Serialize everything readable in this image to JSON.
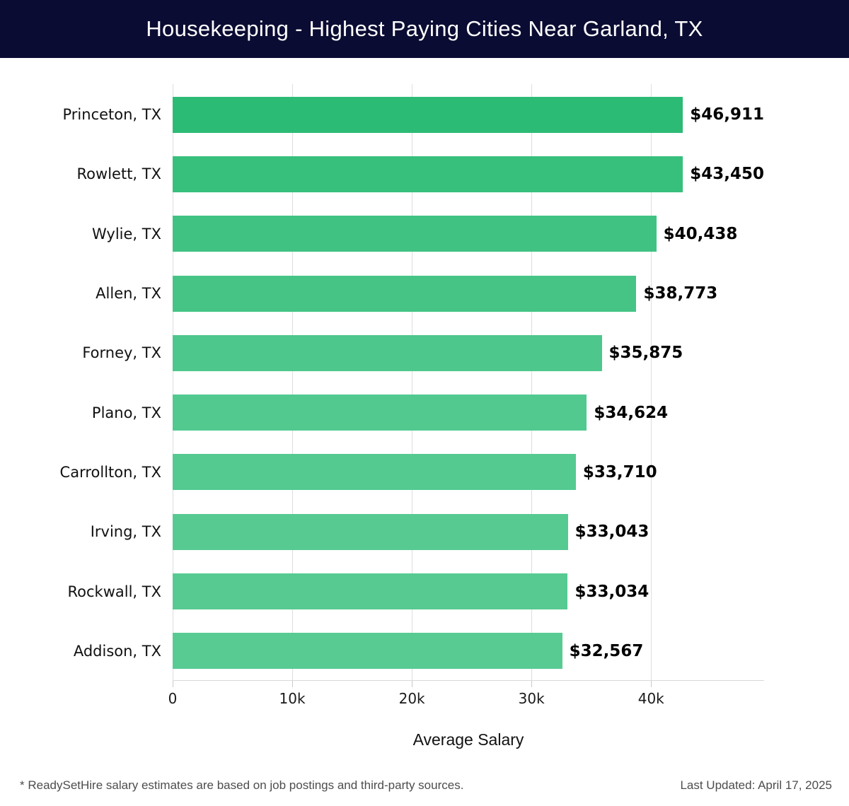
{
  "header": {
    "title": "Housekeeping - Highest Paying Cities Near Garland, TX",
    "bg_color": "#0b0c33",
    "text_color": "#ffffff"
  },
  "chart_data": {
    "type": "bar",
    "orientation": "horizontal",
    "title": "Housekeeping - Highest Paying Cities Near Garland, TX",
    "categories": [
      "Princeton, TX",
      "Rowlett, TX",
      "Wylie, TX",
      "Allen, TX",
      "Forney, TX",
      "Plano, TX",
      "Carrollton, TX",
      "Irving, TX",
      "Rockwall, TX",
      "Addison, TX"
    ],
    "values": [
      46911,
      43450,
      40438,
      38773,
      35875,
      34624,
      33710,
      33043,
      33034,
      32567
    ],
    "value_labels": [
      "$46,911",
      "$43,450",
      "$40,438",
      "$38,773",
      "$35,875",
      "$34,624",
      "$33,710",
      "$33,043",
      "$33,034",
      "$32,567"
    ],
    "xlabel": "Average Salary",
    "ylabel": "",
    "xlim": [
      0,
      49450
    ],
    "x_ticks": [
      {
        "value": 0,
        "label": "0"
      },
      {
        "value": 10000,
        "label": "10k"
      },
      {
        "value": 20000,
        "label": "20k"
      },
      {
        "value": 30000,
        "label": "30k"
      },
      {
        "value": 40000,
        "label": "40k"
      }
    ],
    "grid": "vertical",
    "legend": "none",
    "bar_color_high": "#2cbb75",
    "bar_color_low": "#58cb93",
    "gridline_color": "#dedede"
  },
  "footer": {
    "note": "* ReadySetHire salary estimates are based on job postings and third-party sources.",
    "last_updated": "Last Updated: April 17, 2025"
  }
}
